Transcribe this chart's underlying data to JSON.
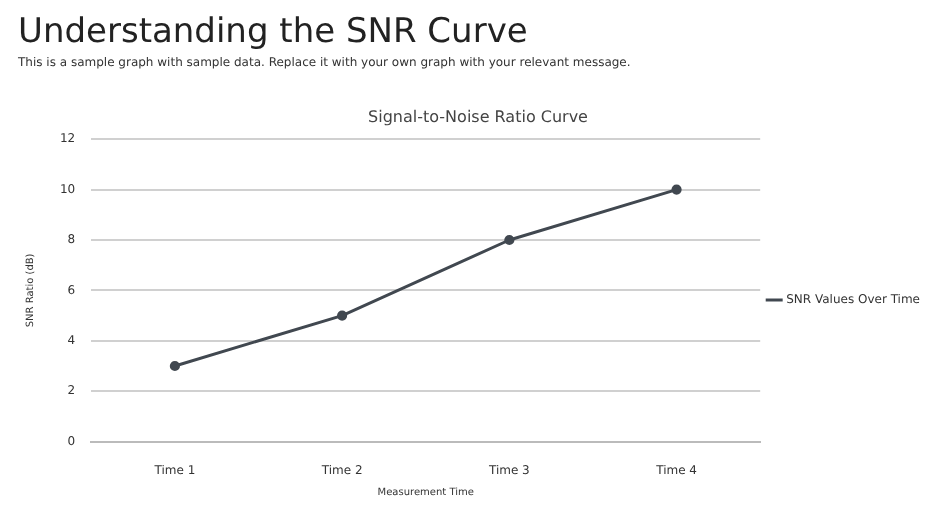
{
  "chart_data": {
    "type": "line",
    "title": "Understanding the SNR Curve",
    "subtitle": "This is a sample graph with sample data. Replace it with your own graph with your relevant message.",
    "annotations": [
      "Signal-to-Noise Ratio Curve"
    ],
    "xlabel": "Measurement Time",
    "ylabel": "SNR Ratio (dB)",
    "categories": [
      "Time 1",
      "Time 2",
      "Time 3",
      "Time 4"
    ],
    "series": [
      {
        "name": "SNR Values Over Time",
        "color": "#414850",
        "values": [
          3,
          5,
          8,
          10
        ]
      }
    ],
    "ylim": [
      0,
      12
    ],
    "yticks": [
      0,
      2,
      4,
      6,
      8,
      10,
      12
    ],
    "grid": "y",
    "legend": "right",
    "marker": "circle",
    "line_style": "solid"
  }
}
